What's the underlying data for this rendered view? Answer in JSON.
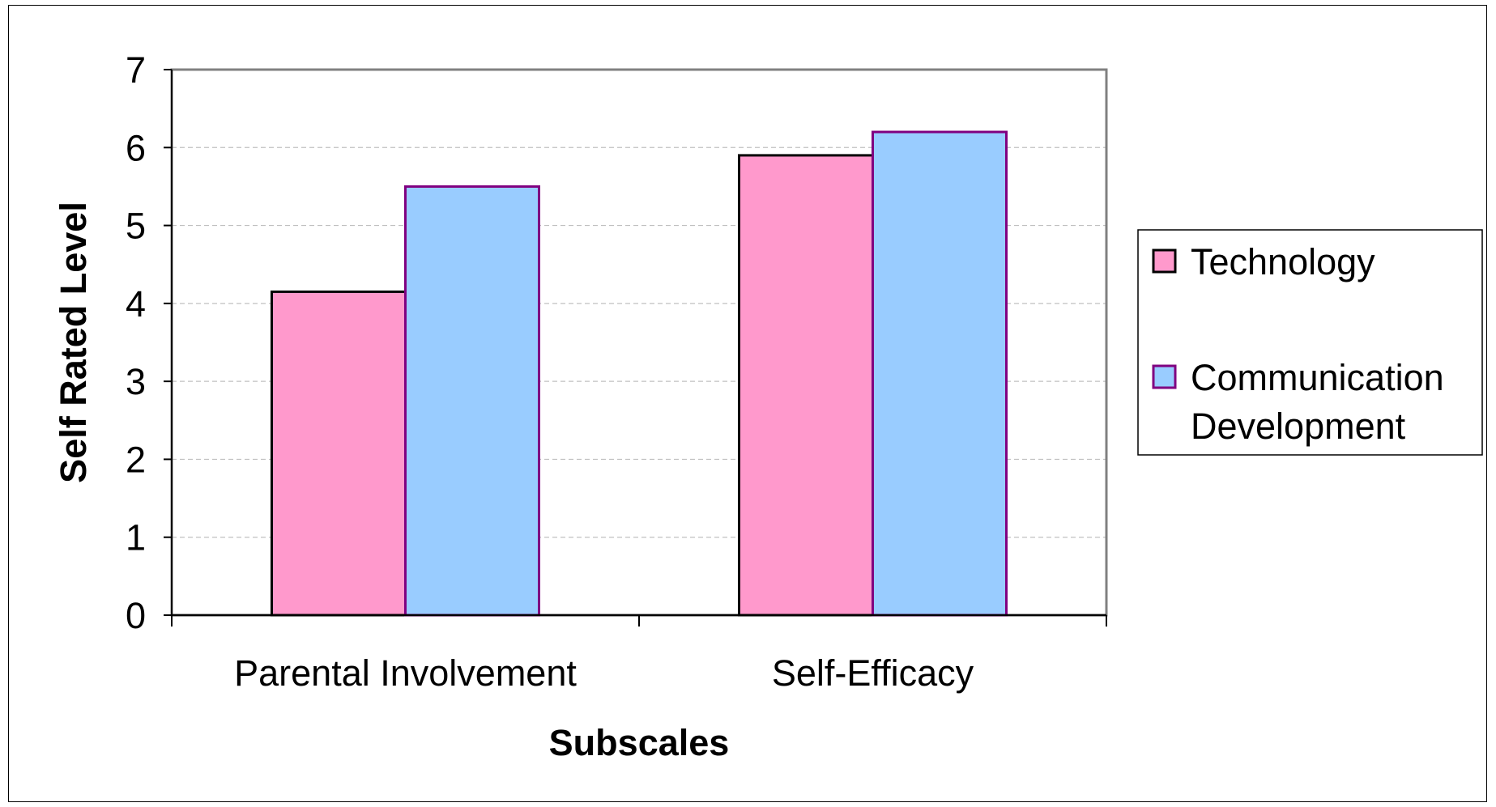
{
  "chart_data": {
    "type": "bar",
    "categories": [
      "Parental Involvement",
      "Self-Efficacy"
    ],
    "series": [
      {
        "name": "Technology",
        "values": [
          4.15,
          5.9
        ],
        "color": "#ff99cc",
        "stroke": "#000000"
      },
      {
        "name": "Communication Development",
        "values": [
          5.5,
          6.2
        ],
        "color": "#99ccff",
        "stroke": "#800080"
      }
    ],
    "legend_lines": [
      [
        "Technology"
      ],
      [
        "Communication",
        "Development"
      ]
    ],
    "title": "",
    "xlabel": "Subscales",
    "ylabel": "Self Rated Level",
    "ylim": [
      0,
      7
    ],
    "yticks": [
      0,
      1,
      2,
      3,
      4,
      5,
      6,
      7
    ],
    "grid": true,
    "grid_color": "#c0c0c0",
    "plot_border_color": "#808080",
    "legend_position": "right"
  }
}
